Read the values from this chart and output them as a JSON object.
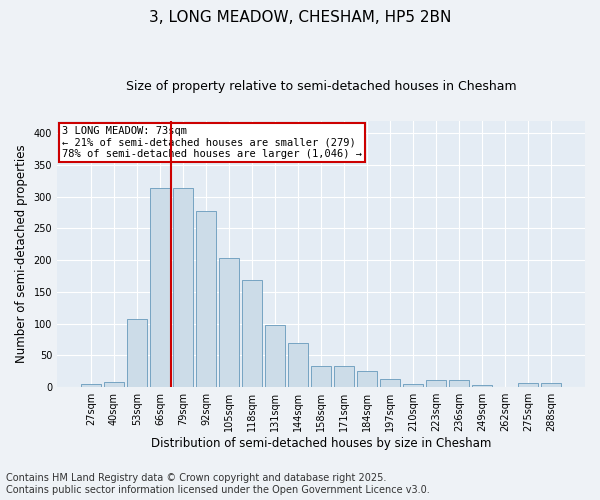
{
  "title": "3, LONG MEADOW, CHESHAM, HP5 2BN",
  "subtitle": "Size of property relative to semi-detached houses in Chesham",
  "xlabel": "Distribution of semi-detached houses by size in Chesham",
  "ylabel": "Number of semi-detached properties",
  "categories": [
    "27sqm",
    "40sqm",
    "53sqm",
    "66sqm",
    "79sqm",
    "92sqm",
    "105sqm",
    "118sqm",
    "131sqm",
    "144sqm",
    "158sqm",
    "171sqm",
    "184sqm",
    "197sqm",
    "210sqm",
    "223sqm",
    "236sqm",
    "249sqm",
    "262sqm",
    "275sqm",
    "288sqm"
  ],
  "values": [
    5,
    8,
    108,
    313,
    313,
    278,
    203,
    169,
    98,
    69,
    34,
    33,
    25,
    13,
    5,
    11,
    11,
    3,
    0,
    6,
    6
  ],
  "bar_color": "#ccdce8",
  "bar_edge_color": "#6699bb",
  "vline_x_index": 3,
  "vline_color": "#cc0000",
  "annotation_title": "3 LONG MEADOW: 73sqm",
  "annotation_line1": "← 21% of semi-detached houses are smaller (279)",
  "annotation_line2": "78% of semi-detached houses are larger (1,046) →",
  "annotation_box_color": "#cc0000",
  "ylim": [
    0,
    420
  ],
  "yticks": [
    0,
    50,
    100,
    150,
    200,
    250,
    300,
    350,
    400
  ],
  "footer_line1": "Contains HM Land Registry data © Crown copyright and database right 2025.",
  "footer_line2": "Contains public sector information licensed under the Open Government Licence v3.0.",
  "bg_color": "#eef2f6",
  "plot_bg_color": "#e4ecf4",
  "title_fontsize": 11,
  "subtitle_fontsize": 9,
  "xlabel_fontsize": 8.5,
  "ylabel_fontsize": 8.5,
  "footer_fontsize": 7,
  "tick_fontsize": 7,
  "annot_fontsize": 7.5
}
